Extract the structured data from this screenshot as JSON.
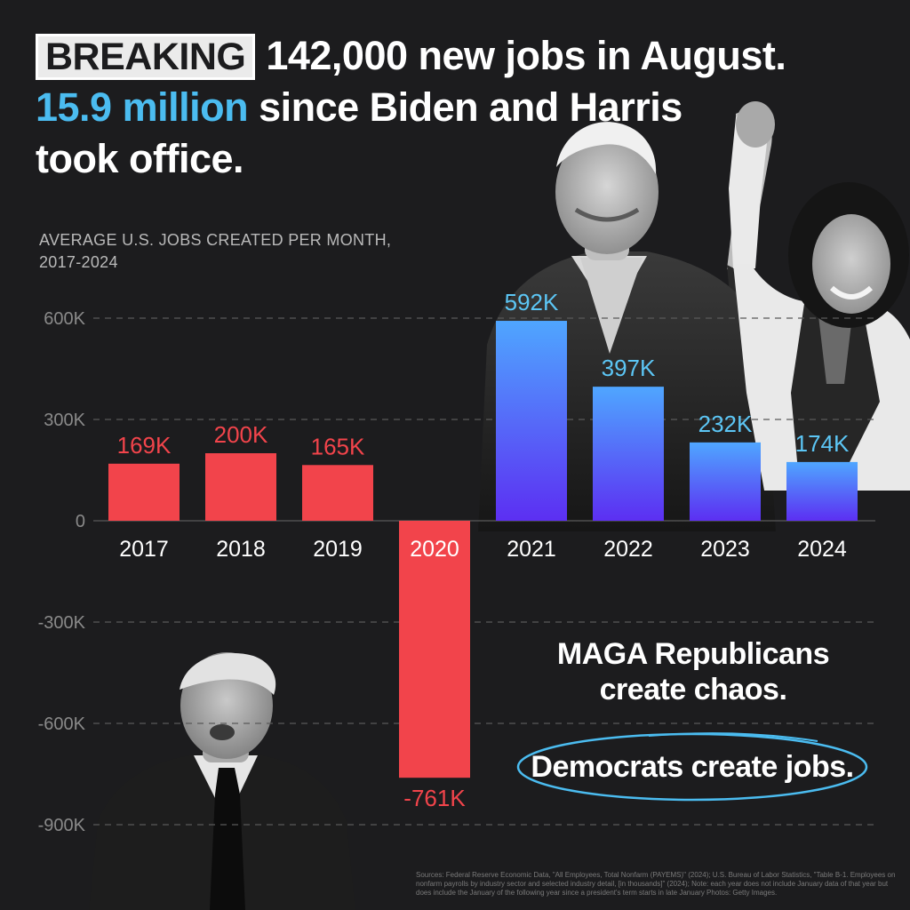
{
  "headline": {
    "badge": "BREAKING",
    "line1_rest": "142,000 new jobs in August.",
    "line2_highlight": "15.9 million",
    "line2_rest": " since Biden and Harris",
    "line3": "took office."
  },
  "chart_data": {
    "type": "bar",
    "title": "AVERAGE U.S. JOBS CREATED PER MONTH, 2017-2024",
    "subtitle_line1": "AVERAGE U.S. JOBS CREATED PER MONTH,",
    "subtitle_line2": "2017-2024",
    "categories": [
      "2017",
      "2018",
      "2019",
      "2020",
      "2021",
      "2022",
      "2023",
      "2024"
    ],
    "values": [
      169,
      200,
      165,
      -761,
      592,
      397,
      232,
      174
    ],
    "value_labels": [
      "169K",
      "200K",
      "165K",
      "-761K",
      "592K",
      "397K",
      "232K",
      "174K"
    ],
    "party": [
      "trump",
      "trump",
      "trump",
      "trump",
      "biden",
      "biden",
      "biden",
      "biden"
    ],
    "yticks": [
      600,
      300,
      0,
      -300,
      -600,
      -900
    ],
    "ytick_labels": [
      "600K",
      "300K",
      "0",
      "-300K",
      "-600K",
      "-900K"
    ],
    "ylim": [
      -900,
      600
    ],
    "grid": true,
    "colors": {
      "trump": "#f2444b",
      "biden_top": "#4fa6ff",
      "biden_bottom": "#5c2ff2",
      "trump_label": "#f2444b",
      "biden_label": "#5cc6f5"
    }
  },
  "tagline": "MAGA Republicans create chaos.",
  "tagline_line1": "MAGA Republicans",
  "tagline_line2": "create chaos.",
  "pill_text": "Democrats create jobs.",
  "sources": "Sources: Federal Reserve Economic Data, \"All Employees, Total Nonfarm (PAYEMS)\" (2024); U.S. Bureau of Labor Statistics, \"Table B-1. Employees on nonfarm payrolls by industry sector and selected industry detail, [in thousands]\" (2024); Note: each year does not include January data of that year but does include the January of the following year since a president's term starts in late January Photos: Getty Images."
}
